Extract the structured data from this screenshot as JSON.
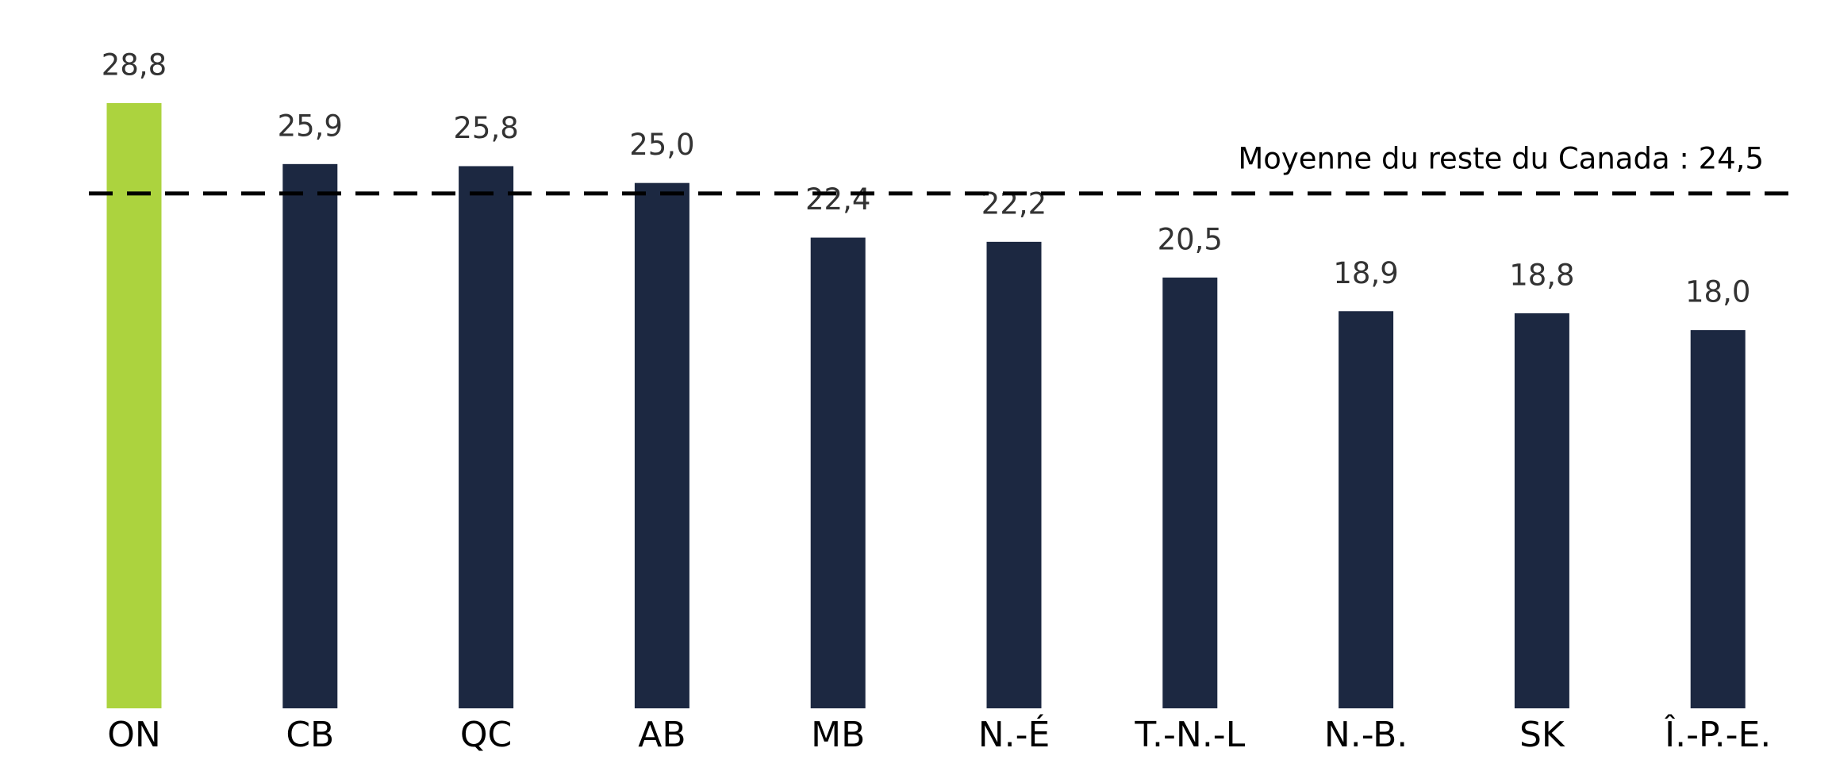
{
  "chart_data": {
    "type": "bar",
    "categories": [
      "ON",
      "CB",
      "QC",
      "AB",
      "MB",
      "N.-É",
      "T.-N.-L",
      "N.-B.",
      "SK",
      "Î.-P.-E."
    ],
    "values": [
      28.8,
      25.9,
      25.8,
      25.0,
      22.4,
      22.2,
      20.5,
      18.9,
      18.8,
      18.0
    ],
    "value_labels": [
      "28,8",
      "25,9",
      "25,8",
      "25,0",
      "22,4",
      "22,2",
      "20,5",
      "18,9",
      "18,8",
      "18,0"
    ],
    "colors": [
      "#acd33e",
      "#1c2841",
      "#1c2841",
      "#1c2841",
      "#1c2841",
      "#1c2841",
      "#1c2841",
      "#1c2841",
      "#1c2841",
      "#1c2841"
    ],
    "reference_line": {
      "value": 24.5,
      "label": "Moyenne du reste du Canada : 24,5",
      "style": "dashed",
      "color": "#000000"
    }
  }
}
